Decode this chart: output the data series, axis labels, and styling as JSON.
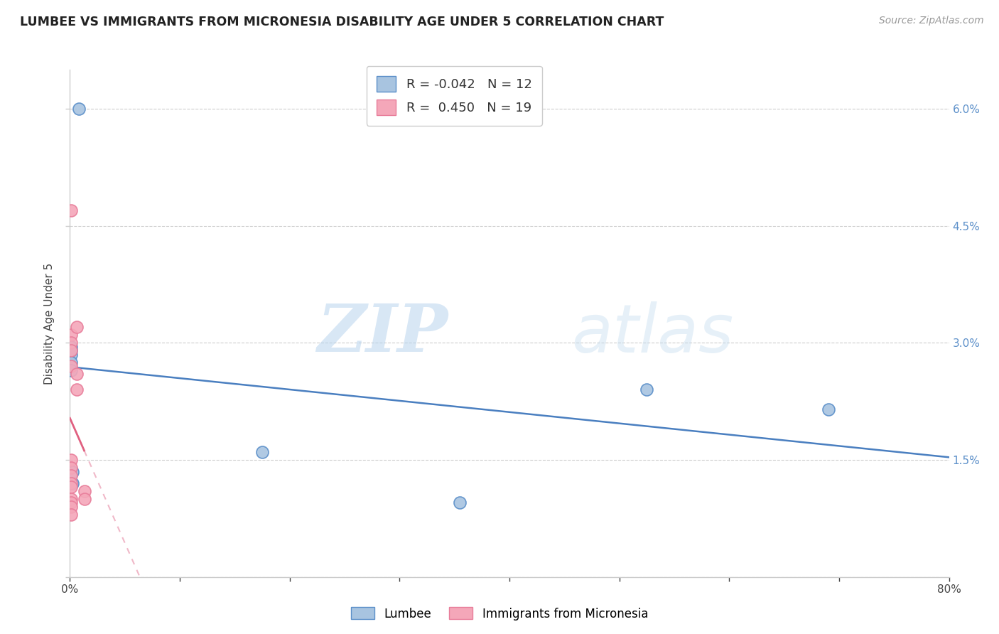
{
  "title": "LUMBEE VS IMMIGRANTS FROM MICRONESIA DISABILITY AGE UNDER 5 CORRELATION CHART",
  "source": "Source: ZipAtlas.com",
  "ylabel": "Disability Age Under 5",
  "legend_lumbee_label": "Lumbee",
  "legend_micro_label": "Immigrants from Micronesia",
  "lumbee_R": "-0.042",
  "lumbee_N": "12",
  "micro_R": "0.450",
  "micro_N": "19",
  "xlim": [
    0.0,
    0.8
  ],
  "ylim": [
    0.0,
    0.065
  ],
  "xtick_pos": [
    0.0,
    0.1,
    0.2,
    0.3,
    0.4,
    0.5,
    0.6,
    0.7,
    0.8
  ],
  "ytick_pos": [
    0.0,
    0.015,
    0.03,
    0.045,
    0.06
  ],
  "ytick_labels_right": [
    "",
    "1.5%",
    "3.0%",
    "4.5%",
    "6.0%"
  ],
  "lumbee_color": "#a8c4e0",
  "lumbee_edge_color": "#5b8fc9",
  "micro_color": "#f4a7b9",
  "micro_edge_color": "#e87d9a",
  "lumbee_line_color": "#4a7fc0",
  "micro_line_color": "#e06080",
  "micro_dash_color": "#f0b8c8",
  "watermark_zip": "ZIP",
  "watermark_atlas": "atlas",
  "watermark_color_zip": "#b8d4ee",
  "watermark_color_atlas": "#c8dff0",
  "lumbee_x": [
    0.008,
    0.0008,
    0.0008,
    0.0008,
    0.0008,
    0.0008,
    0.002,
    0.002,
    0.175,
    0.355,
    0.525,
    0.69
  ],
  "lumbee_y": [
    0.06,
    0.0295,
    0.0285,
    0.029,
    0.0275,
    0.0265,
    0.0135,
    0.012,
    0.016,
    0.0095,
    0.024,
    0.0215
  ],
  "micro_x": [
    0.0008,
    0.0008,
    0.0008,
    0.0008,
    0.0008,
    0.0008,
    0.0008,
    0.0008,
    0.0008,
    0.0008,
    0.0008,
    0.0008,
    0.0008,
    0.0008,
    0.006,
    0.006,
    0.006,
    0.013,
    0.013
  ],
  "micro_y": [
    0.047,
    0.031,
    0.03,
    0.029,
    0.027,
    0.015,
    0.014,
    0.013,
    0.012,
    0.0115,
    0.01,
    0.0095,
    0.009,
    0.008,
    0.032,
    0.026,
    0.024,
    0.011,
    0.01
  ]
}
